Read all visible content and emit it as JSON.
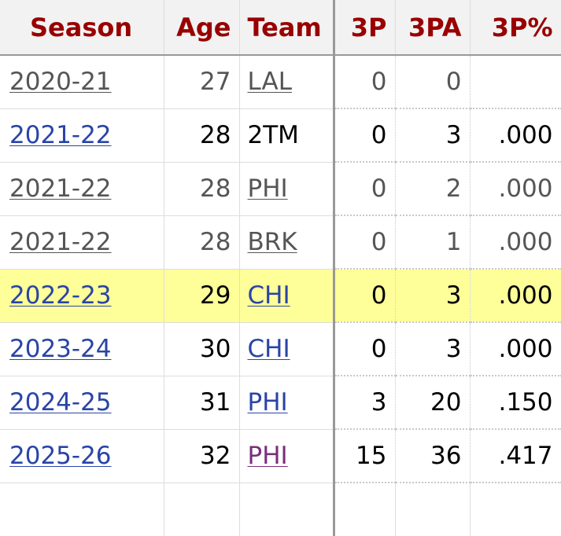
{
  "table": {
    "headers": {
      "season": "Season",
      "age": "Age",
      "team": "Team",
      "three_p": "3P",
      "three_pa": "3PA",
      "three_pct": "3P%"
    },
    "rows": [
      {
        "season": "2020-21",
        "age": "27",
        "team": "LAL",
        "three_p": "0",
        "three_pa": "0",
        "three_pct": ""
      },
      {
        "season": "2021-22",
        "age": "28",
        "team": "2TM",
        "three_p": "0",
        "three_pa": "3",
        "three_pct": ".000"
      },
      {
        "season": "2021-22",
        "age": "28",
        "team": "PHI",
        "three_p": "0",
        "three_pa": "2",
        "three_pct": ".000"
      },
      {
        "season": "2021-22",
        "age": "28",
        "team": "BRK",
        "three_p": "0",
        "three_pa": "1",
        "three_pct": ".000"
      },
      {
        "season": "2022-23",
        "age": "29",
        "team": "CHI",
        "three_p": "0",
        "three_pa": "3",
        "three_pct": ".000"
      },
      {
        "season": "2023-24",
        "age": "30",
        "team": "CHI",
        "three_p": "0",
        "three_pa": "3",
        "three_pct": ".000"
      },
      {
        "season": "2024-25",
        "age": "31",
        "team": "PHI",
        "three_p": "3",
        "three_pa": "20",
        "three_pct": ".150"
      },
      {
        "season": "2025-26",
        "age": "32",
        "team": "PHI",
        "three_p": "15",
        "three_pa": "36",
        "three_pct": ".417"
      }
    ]
  },
  "colors": {
    "header_text": "#990000",
    "header_bg": "#f2f2f2",
    "link_blue": "#2a44a6",
    "link_visited": "#7a2e7a",
    "partial_text": "#555555",
    "highlight_row": "#ffff99"
  }
}
